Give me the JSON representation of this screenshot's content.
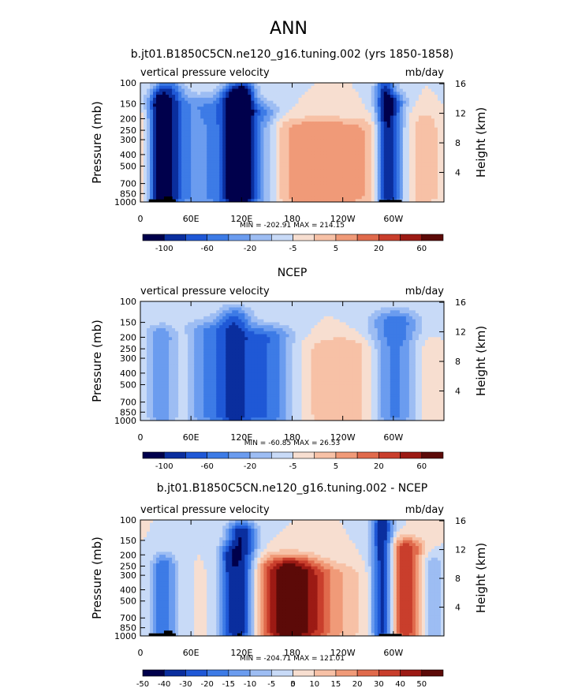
{
  "page_title": "ANN",
  "palette_diverging": [
    "#00004c",
    "#0a2e9e",
    "#1f58d6",
    "#3d7be6",
    "#6b9cef",
    "#9dbdf3",
    "#c8daf7",
    "#f7ded0",
    "#f7c1a6",
    "#f09a78",
    "#e06a4c",
    "#c93e2c",
    "#9c1a14",
    "#5c0a08"
  ],
  "chart_data": [
    {
      "type": "heatmap",
      "title": "b.jt01.B1850C5CN.ne120_g16.tuning.002 (yrs 1850-1858)",
      "left_label": "vertical pressure velocity",
      "right_label": "mb/day",
      "ylabel": "Pressure (mb)",
      "ylabel_right": "Height (km)",
      "yticks": [
        "100",
        "150",
        "200",
        "250",
        "300",
        "400",
        "500",
        "700",
        "850",
        "1000"
      ],
      "ytick_values": [
        100,
        150,
        200,
        250,
        300,
        400,
        500,
        700,
        850,
        1000
      ],
      "yticks_right": [
        "16",
        "12",
        "8",
        "4"
      ],
      "yticks_right_values": [
        16,
        12,
        8,
        4
      ],
      "xticks": [
        "0",
        "60E",
        "120E",
        "180",
        "120W",
        "60W"
      ],
      "xtick_values": [
        0,
        60,
        120,
        180,
        240,
        300
      ],
      "xlim": [
        0,
        360
      ],
      "minmax": "MIN = -202.91   MAX = 214.15",
      "colorbar_labels": [
        "-100",
        "-60",
        "-20",
        "-5",
        "5",
        "20",
        "60"
      ],
      "colorbar_label_bounds": [
        1,
        3,
        5,
        7,
        9,
        11,
        13
      ],
      "features": [
        {
          "lon": 20,
          "width": 8,
          "p_top": 150,
          "v": -4
        },
        {
          "lon": 33,
          "width": 12,
          "p_top": 120,
          "v": -5
        },
        {
          "lon": 75,
          "width": 30,
          "p_top": 160,
          "v": -3
        },
        {
          "lon": 110,
          "width": 12,
          "p_top": 130,
          "v": -5
        },
        {
          "lon": 123,
          "width": 10,
          "p_top": 120,
          "v": -5
        },
        {
          "lon": 145,
          "width": 14,
          "p_top": 180,
          "v": -3
        },
        {
          "lon": 215,
          "width": 55,
          "p_top": 250,
          "v": 3
        },
        {
          "lon": 290,
          "width": 8,
          "p_top": 110,
          "v": -5
        },
        {
          "lon": 302,
          "width": 10,
          "p_top": 150,
          "v": -4
        },
        {
          "lon": 340,
          "width": 30,
          "p_top": 200,
          "v": 1
        }
      ],
      "topography": [
        {
          "lon0": 10,
          "lon1": 42,
          "p": 950
        },
        {
          "lon0": 28,
          "lon1": 38,
          "p": 900
        },
        {
          "lon0": 283,
          "lon1": 310,
          "p": 960
        }
      ]
    },
    {
      "type": "heatmap",
      "title": "NCEP",
      "left_label": "vertical pressure velocity",
      "right_label": "mb/day",
      "ylabel": "Pressure (mb)",
      "ylabel_right": "Height (km)",
      "yticks": [
        "100",
        "150",
        "200",
        "250",
        "300",
        "400",
        "500",
        "700",
        "850",
        "1000"
      ],
      "ytick_values": [
        100,
        150,
        200,
        250,
        300,
        400,
        500,
        700,
        850,
        1000
      ],
      "yticks_right": [
        "16",
        "12",
        "8",
        "4"
      ],
      "yticks_right_values": [
        16,
        12,
        8,
        4
      ],
      "xticks": [
        "0",
        "60E",
        "120E",
        "180",
        "120W",
        "60W"
      ],
      "xtick_values": [
        0,
        60,
        120,
        180,
        240,
        300
      ],
      "xlim": [
        0,
        360
      ],
      "minmax": "MIN = -60.85   MAX = 26.53",
      "colorbar_labels": [
        "-100",
        "-60",
        "-20",
        "-5",
        "5",
        "20",
        "60"
      ],
      "colorbar_label_bounds": [
        1,
        3,
        5,
        7,
        9,
        11,
        13
      ],
      "features": [
        {
          "lon": 25,
          "width": 14,
          "p_top": 200,
          "v": -3
        },
        {
          "lon": 48,
          "width": 12,
          "p_top": 200,
          "v": 1
        },
        {
          "lon": 80,
          "width": 22,
          "p_top": 180,
          "v": -3
        },
        {
          "lon": 112,
          "width": 14,
          "p_top": 140,
          "v": -4
        },
        {
          "lon": 150,
          "width": 22,
          "p_top": 200,
          "v": -4
        },
        {
          "lon": 240,
          "width": 35,
          "p_top": 250,
          "v": 2
        },
        {
          "lon": 302,
          "width": 20,
          "p_top": 150,
          "v": -4
        },
        {
          "lon": 340,
          "width": 25,
          "p_top": 250,
          "v": 1
        }
      ],
      "topography": []
    },
    {
      "type": "heatmap",
      "title": "b.jt01.B1850C5CN.ne120_g16.tuning.002 - NCEP",
      "left_label": "vertical pressure velocity",
      "right_label": "mb/day",
      "ylabel": "Pressure (mb)",
      "ylabel_right": "Height (km)",
      "yticks": [
        "100",
        "150",
        "200",
        "250",
        "300",
        "400",
        "500",
        "700",
        "850",
        "1000"
      ],
      "ytick_values": [
        100,
        150,
        200,
        250,
        300,
        400,
        500,
        700,
        850,
        1000
      ],
      "yticks_right": [
        "16",
        "12",
        "8",
        "4"
      ],
      "yticks_right_values": [
        16,
        12,
        8,
        4
      ],
      "xticks": [
        "0",
        "60E",
        "120E",
        "180",
        "120W",
        "60W"
      ],
      "xtick_values": [
        0,
        60,
        120,
        180,
        240,
        300
      ],
      "xlim": [
        0,
        360
      ],
      "minmax": "MIN = -204.71   MAX = 121.01",
      "colorbar_labels": [
        "-50",
        "-40",
        "-30",
        "-20",
        "-15",
        "-10",
        "-5",
        "0",
        "5",
        "10",
        "15",
        "20",
        "30",
        "40",
        "50"
      ],
      "colorbar_label_bounds": [
        0,
        1,
        2,
        3,
        4,
        5,
        6,
        7,
        7,
        8,
        9,
        10,
        11,
        12,
        13
      ],
      "features": [
        {
          "lon": 28,
          "width": 10,
          "p_top": 250,
          "v": -4
        },
        {
          "lon": 103,
          "width": 8,
          "p_top": 200,
          "v": -3
        },
        {
          "lon": 120,
          "width": 12,
          "p_top": 130,
          "v": -6
        },
        {
          "lon": 175,
          "width": 25,
          "p_top": 250,
          "v": 5
        },
        {
          "lon": 200,
          "width": 40,
          "p_top": 300,
          "v": 3
        },
        {
          "lon": 287,
          "width": 9,
          "p_top": 110,
          "v": -6
        },
        {
          "lon": 315,
          "width": 14,
          "p_top": 180,
          "v": 5
        },
        {
          "lon": 345,
          "width": 10,
          "p_top": 250,
          "v": -2
        }
      ],
      "topography": [
        {
          "lon0": 10,
          "lon1": 42,
          "p": 950
        },
        {
          "lon0": 28,
          "lon1": 38,
          "p": 900
        },
        {
          "lon0": 115,
          "lon1": 119,
          "p": 950
        },
        {
          "lon0": 283,
          "lon1": 310,
          "p": 960
        }
      ]
    }
  ]
}
